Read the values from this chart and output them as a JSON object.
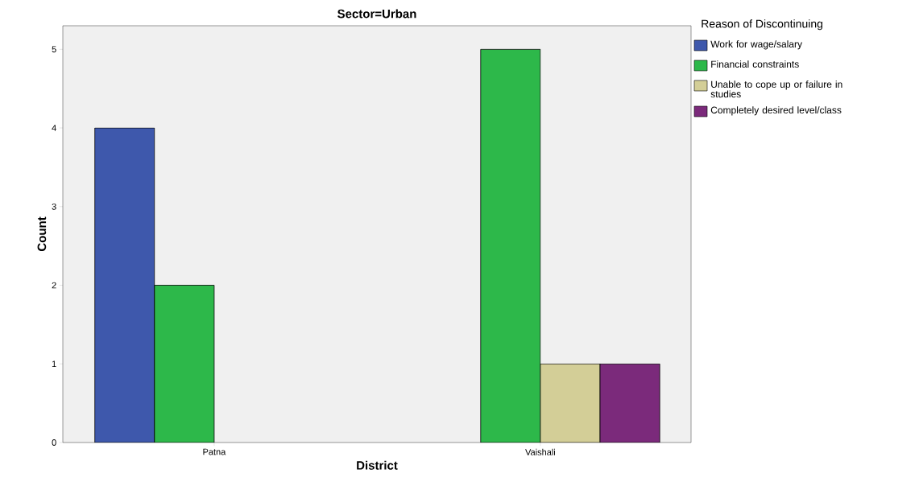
{
  "chart_data": {
    "type": "bar",
    "title": "Sector=Urban",
    "xlabel": "District",
    "ylabel": "Count",
    "legend_title": "Reason of Discontinuing",
    "categories": [
      "Patna",
      "Vaishali"
    ],
    "series": [
      {
        "name": "Work for wage/salary",
        "color": "#3e58ac",
        "values": [
          4,
          null
        ]
      },
      {
        "name": "Financial constraints",
        "color": "#2db84a",
        "values": [
          2,
          5
        ]
      },
      {
        "name": "Unable to cope up or failure in studies",
        "color": "#d3ce97",
        "values": [
          null,
          1
        ]
      },
      {
        "name": "Completely desired level/class",
        "color": "#7b2a7b",
        "values": [
          null,
          1
        ]
      }
    ],
    "ylim": [
      0,
      5.3
    ],
    "yticks": [
      0,
      1,
      2,
      3,
      4,
      5
    ],
    "legend": "right"
  }
}
